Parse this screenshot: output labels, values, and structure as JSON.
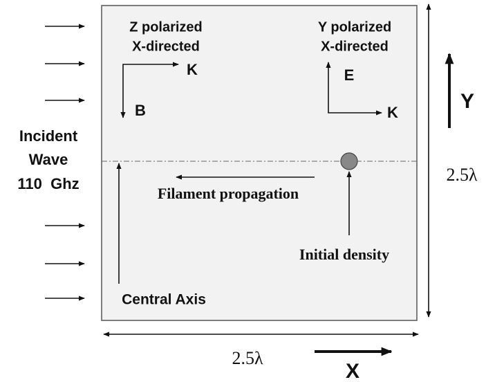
{
  "left_panel": {
    "title": [
      "Z polarized",
      "X-directed"
    ],
    "k": "K",
    "b": "B"
  },
  "right_panel": {
    "title": [
      "Y polarized",
      "X-directed"
    ],
    "e": "E",
    "k": "K"
  },
  "incident_wave": [
    "Incident",
    "Wave",
    "110  Ghz"
  ],
  "labels": {
    "filament": "Filament propagation",
    "density": "Initial density",
    "axis": "Central Axis"
  },
  "dimensions": {
    "height": "2.5λ",
    "width": "2.5λ"
  },
  "axes": {
    "y": "Y",
    "x": "X"
  }
}
